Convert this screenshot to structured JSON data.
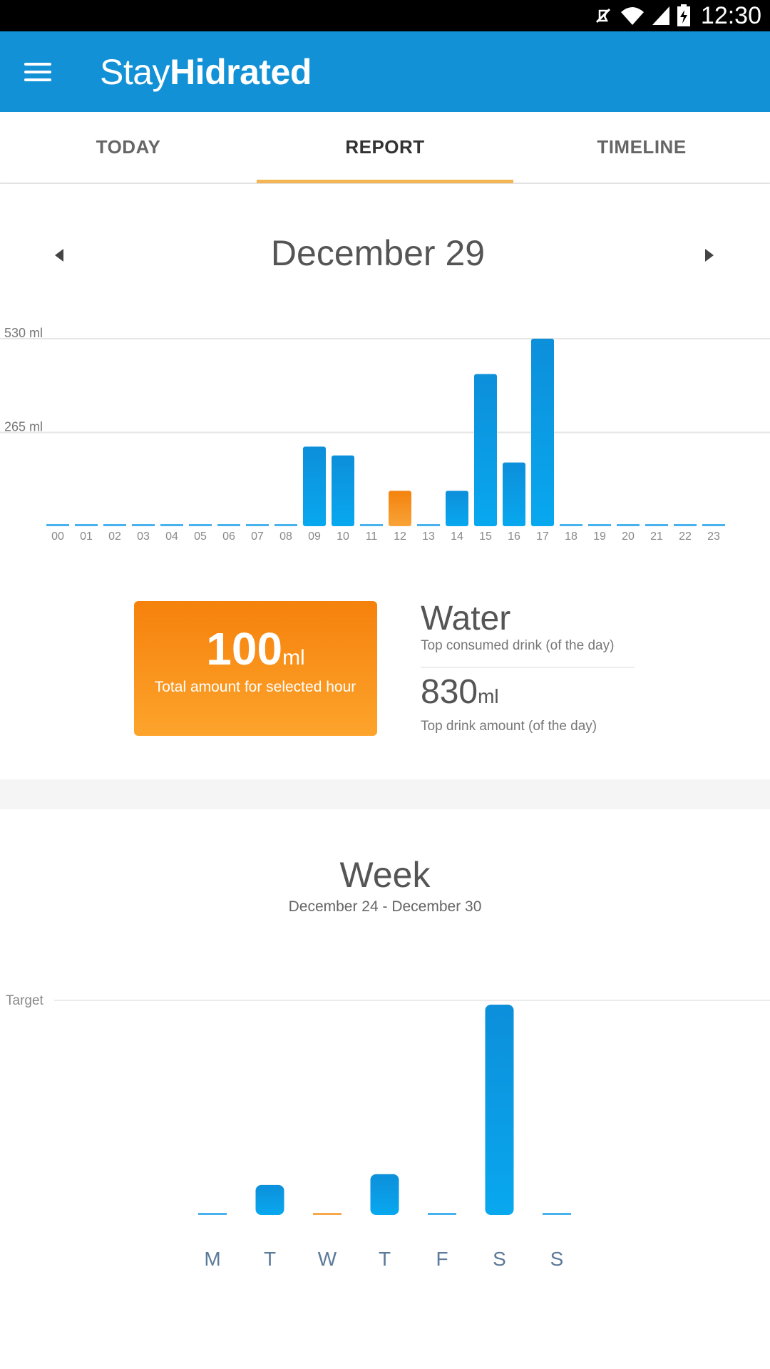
{
  "status_bar": {
    "time": "12:30",
    "icons": [
      "mute-icon",
      "wifi-icon",
      "signal-icon",
      "battery-charging-icon"
    ]
  },
  "app_bar": {
    "title_light": "Stay",
    "title_bold": "Hidrated",
    "menu_icon": "menu-icon"
  },
  "tabs": [
    {
      "label": "TODAY",
      "active": false
    },
    {
      "label": "REPORT",
      "active": true
    },
    {
      "label": "TIMELINE",
      "active": false
    }
  ],
  "day_report": {
    "date": "December 29",
    "prev_icon": "arrow-left-icon",
    "next_icon": "arrow-right-icon"
  },
  "selected_hour": {
    "value": "100",
    "unit": "ml",
    "caption": "Total amount for selected hour"
  },
  "top_drink": {
    "name": "Water",
    "name_caption": "Top consumed drink (of the day)",
    "amount": "830",
    "unit": "ml",
    "amount_caption": "Top drink amount (of the day)"
  },
  "week_report": {
    "title": "Week",
    "range": "December 24 - December 30"
  },
  "colors": {
    "primary": "#1291d6",
    "bar": "#0d8fda",
    "bar_light": "#08a8ef",
    "accent_orange": "#f4820d",
    "tab_indicator": "#f4b554"
  },
  "chart_data": [
    {
      "type": "bar",
      "title": "",
      "xlabel": "",
      "ylabel": "",
      "ylim": [
        0,
        530
      ],
      "y_ticks": [
        {
          "value": 265,
          "label": "265 ml"
        },
        {
          "value": 530,
          "label": "530 ml"
        }
      ],
      "grid": true,
      "categories": [
        "00",
        "01",
        "02",
        "03",
        "04",
        "05",
        "06",
        "07",
        "08",
        "09",
        "10",
        "11",
        "12",
        "13",
        "14",
        "15",
        "16",
        "17",
        "18",
        "19",
        "20",
        "21",
        "22",
        "23"
      ],
      "values": [
        0,
        0,
        0,
        0,
        0,
        0,
        0,
        0,
        0,
        225,
        200,
        0,
        100,
        0,
        100,
        430,
        180,
        530,
        0,
        0,
        0,
        0,
        0,
        0
      ],
      "selected_index": 12
    },
    {
      "type": "bar",
      "title": "",
      "xlabel": "",
      "ylabel": "",
      "ylim": [
        0,
        1
      ],
      "y_ticks": [
        {
          "value": 1,
          "label": "Target"
        }
      ],
      "grid": true,
      "values_unit": "fraction of target",
      "categories": [
        "M",
        "T",
        "W",
        "T",
        "F",
        "S",
        "S"
      ],
      "values": [
        0,
        0.14,
        0,
        0.19,
        0,
        0.98,
        0
      ],
      "selected_index": 2
    }
  ]
}
